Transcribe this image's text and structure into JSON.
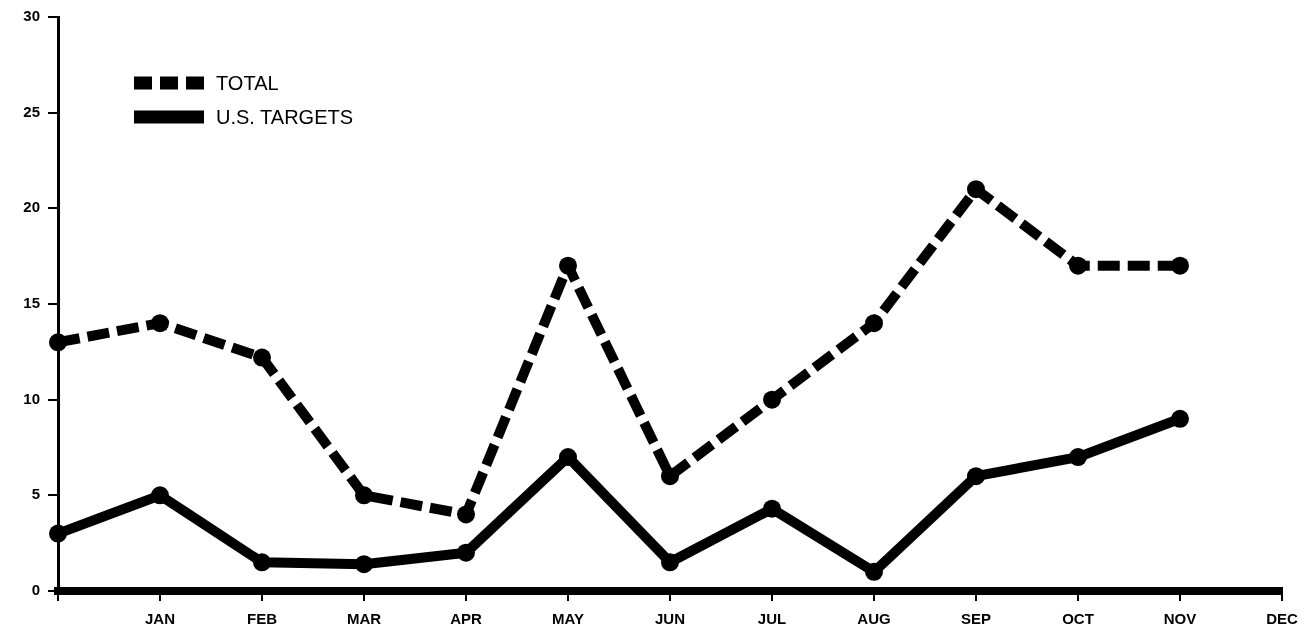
{
  "chart_data": {
    "type": "line",
    "categories": [
      null,
      "JAN",
      "FEB",
      "MAR",
      "APR",
      "MAY",
      "JUN",
      "JUL",
      "AUG",
      "SEP",
      "OCT",
      "NOV",
      "DEC"
    ],
    "series": [
      {
        "name": "TOTAL",
        "color": "#000000",
        "line_style": "dashed",
        "values": [
          13,
          14,
          12.2,
          5,
          4,
          17,
          6,
          10,
          14,
          21,
          17,
          17,
          null
        ]
      },
      {
        "name": "U.S. TARGETS",
        "color": "#000000",
        "line_style": "solid",
        "values": [
          3,
          5,
          1.5,
          1.4,
          2,
          7,
          1.5,
          4.3,
          1,
          6,
          7,
          9,
          null
        ]
      }
    ],
    "ylim": [
      0,
      30
    ],
    "yticks": [
      0,
      5,
      10,
      15,
      20,
      25,
      30
    ],
    "grid": false,
    "legend": "top left",
    "marker": "circle"
  }
}
